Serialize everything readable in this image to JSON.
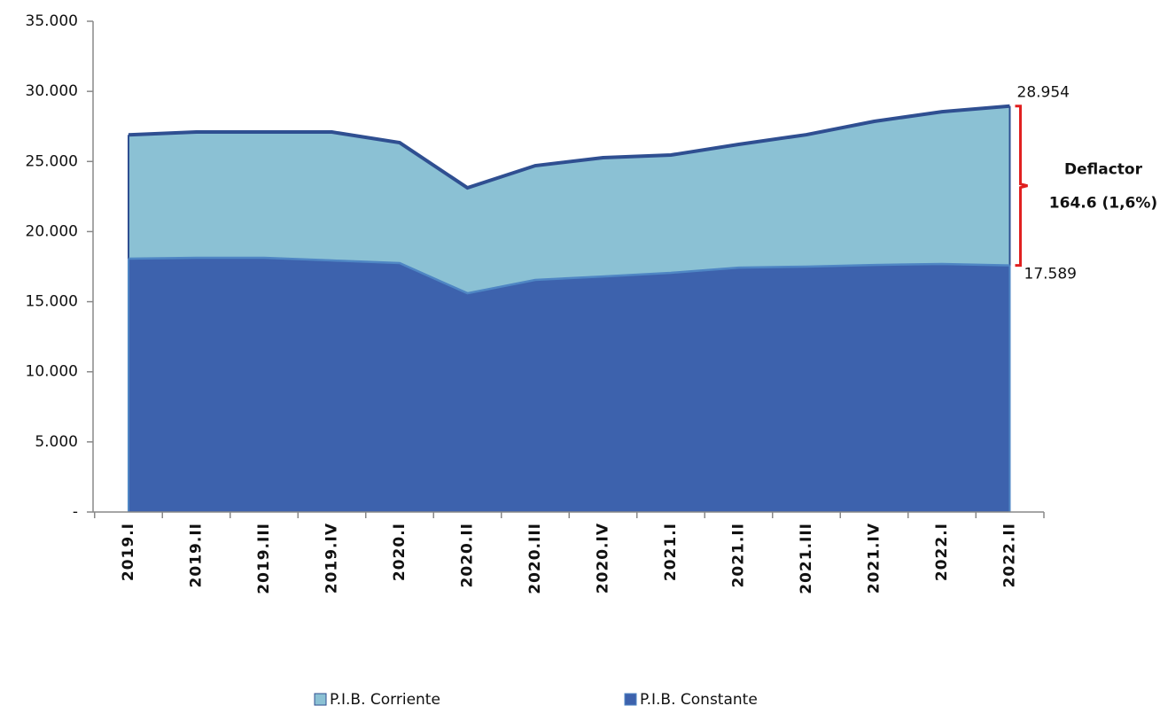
{
  "chart_data": {
    "type": "area",
    "categories": [
      "2019.I",
      "2019.II",
      "2019.III",
      "2019.IV",
      "2020.I",
      "2020.II",
      "2020.III",
      "2020.IV",
      "2021.I",
      "2021.II",
      "2021.III",
      "2021.IV",
      "2022.I",
      "2022.II"
    ],
    "series": [
      {
        "name": "P.I.B. Corriente",
        "color": "#8bc1d4",
        "line_color": "#2f4f91",
        "values": [
          26900,
          27100,
          27100,
          27100,
          26340,
          23120,
          24700,
          25270,
          25460,
          26220,
          26910,
          27860,
          28550,
          28954
        ],
        "value_labels": [
          null,
          null,
          null,
          null,
          null,
          null,
          null,
          null,
          null,
          null,
          null,
          null,
          null,
          "28.954"
        ]
      },
      {
        "name": "P.I.B. Constante",
        "color": "#3d62ad",
        "line_color": "#4f86c4",
        "values": [
          18070,
          18130,
          18130,
          17940,
          17750,
          15600,
          16550,
          16800,
          17060,
          17430,
          17500,
          17620,
          17690,
          17589
        ],
        "value_labels": [
          null,
          null,
          null,
          null,
          null,
          null,
          null,
          null,
          null,
          null,
          null,
          null,
          null,
          "17.589"
        ]
      }
    ],
    "ylim": [
      0,
      35000
    ],
    "yticks": [
      {
        "value": 0,
        "label": "-"
      },
      {
        "value": 5000,
        "label": "5.000"
      },
      {
        "value": 10000,
        "label": "10.000"
      },
      {
        "value": 15000,
        "label": "15.000"
      },
      {
        "value": 20000,
        "label": "20.000"
      },
      {
        "value": 25000,
        "label": "25.000"
      },
      {
        "value": 30000,
        "label": "30.000"
      },
      {
        "value": 35000,
        "label": "35.000"
      }
    ],
    "annotations": [
      "Deflactor",
      "164.6 (1,6%)"
    ],
    "annotation_color": "#e02020",
    "legend": "bottom"
  }
}
